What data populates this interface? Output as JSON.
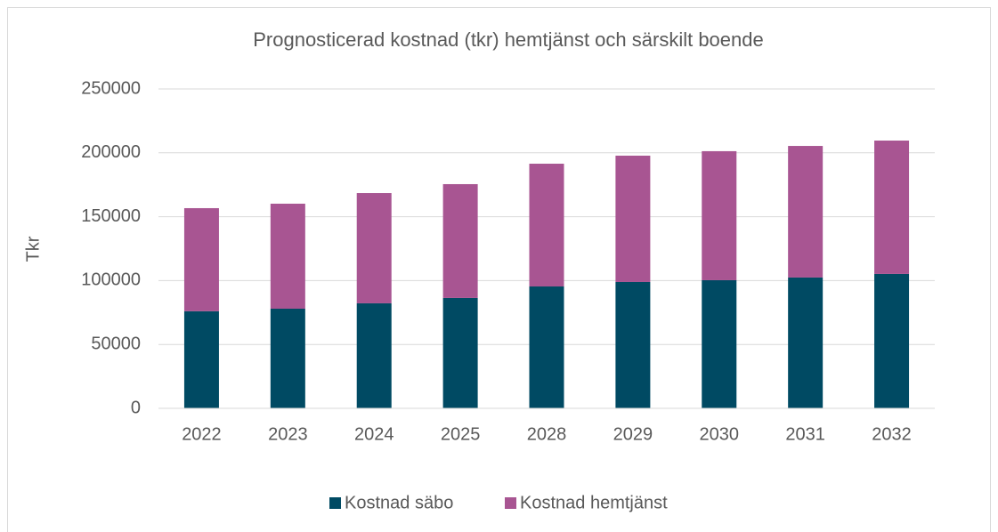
{
  "chart_data": {
    "type": "stacked_bar",
    "title": "Prognosticerad kostnad (tkr) hemtjänst och särskilt boende",
    "y_label": "Tkr",
    "categories": [
      "2022",
      "2023",
      "2024",
      "2025",
      "2028",
      "2029",
      "2030",
      "2031",
      "2032"
    ],
    "series": [
      {
        "name": "Kostnad säbo",
        "color": "#004a63",
        "values": [
          76000,
          78000,
          82200,
          86400,
          95400,
          98900,
          100300,
          102400,
          105200
        ]
      },
      {
        "name": "Kostnad hemtjänst",
        "color": "#a85592",
        "values": [
          80700,
          82200,
          86300,
          89100,
          96100,
          98900,
          101000,
          103000,
          104400
        ]
      }
    ],
    "ylim": [
      0,
      250000
    ],
    "yticks": [
      0,
      50000,
      100000,
      150000,
      200000,
      250000
    ],
    "grid": true,
    "legend": "bottom"
  }
}
